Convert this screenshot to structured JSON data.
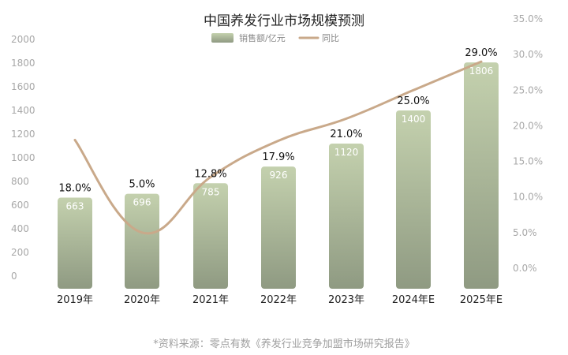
{
  "chart_data": {
    "type": "bar",
    "title": "中国养发行业市场规模预测",
    "categories": [
      "2019年",
      "2020年",
      "2021年",
      "2022年",
      "2023年",
      "2024年E",
      "2025年E"
    ],
    "series": [
      {
        "name": "销售额/亿元",
        "type": "bar",
        "axis": "left",
        "values": [
          663,
          696,
          785,
          926,
          1120,
          1400,
          1806
        ],
        "labels": [
          "663",
          "696",
          "785",
          "926",
          "1120",
          "1400",
          "1806"
        ]
      },
      {
        "name": "同比",
        "type": "line",
        "axis": "right",
        "smooth": true,
        "values": [
          18.0,
          5.0,
          12.8,
          17.9,
          21.0,
          25.0,
          29.0
        ],
        "labels": [
          "18.0%",
          "5.0%",
          "12.8%",
          "17.9%",
          "21.0%",
          "25.0%",
          "29.0%"
        ]
      }
    ],
    "y_left": {
      "min": 0,
      "max": 2000,
      "step": 200,
      "ticks": [
        "0",
        "200",
        "400",
        "600",
        "800",
        "1000",
        "1200",
        "1400",
        "1600",
        "1800",
        "2000"
      ]
    },
    "y_right": {
      "min": 0,
      "max": 35,
      "step": 5,
      "ticks": [
        "0.0%",
        "5.0%",
        "10.0%",
        "15.0%",
        "20.0%",
        "25.0%",
        "30.0%",
        "35.0%"
      ]
    },
    "legend": {
      "position": "top-center"
    },
    "grid": false,
    "colors": {
      "bar_top": "#c4d1ae",
      "bar_bottom": "#8f9a82",
      "line": "#c9a98a"
    }
  },
  "source": "*资料来源：零点有数《养发行业竞争加盟市场研究报告》"
}
